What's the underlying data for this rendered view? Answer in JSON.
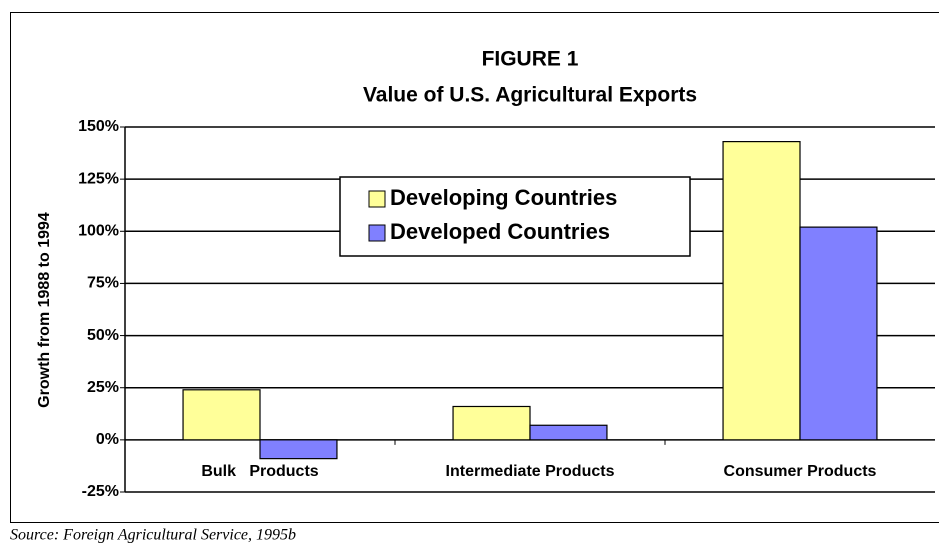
{
  "chart_data": {
    "type": "bar",
    "title": "FIGURE 1",
    "subtitle": "Value of U.S. Agricultural Exports",
    "y_label": "Growth from 1988  to 1994",
    "source": "Source: Foreign Agricultural Service, 1995b",
    "categories": [
      "Bulk   Products",
      "Intermediate Products",
      "Consumer Products"
    ],
    "series": [
      {
        "name": "Developing Countries",
        "color": "#ffff99",
        "values": [
          24,
          16,
          143
        ]
      },
      {
        "name": "Developed Countries",
        "color": "#8080ff",
        "values": [
          -9,
          7,
          102
        ]
      }
    ],
    "ylim": [
      -25,
      150
    ],
    "yticks": [
      {
        "value": -25,
        "label": "-25%"
      },
      {
        "value": 0,
        "label": "0%"
      },
      {
        "value": 25,
        "label": "25%"
      },
      {
        "value": 50,
        "label": "50%"
      },
      {
        "value": 75,
        "label": "75%"
      },
      {
        "value": 100,
        "label": "100%"
      },
      {
        "value": 125,
        "label": "125%"
      },
      {
        "value": 150,
        "label": "150%"
      }
    ],
    "grid": true,
    "legend": "center"
  }
}
